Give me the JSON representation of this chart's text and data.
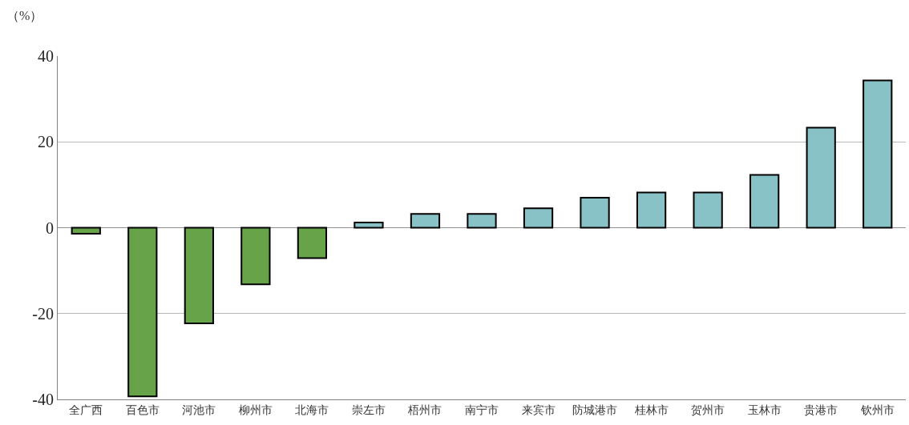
{
  "chart_data": {
    "type": "bar",
    "ylabel": "（%）",
    "categories": [
      "全广西",
      "百色市",
      "河池市",
      "柳州市",
      "北海市",
      "崇左市",
      "梧州市",
      "南宁市",
      "来宾市",
      "防城港市",
      "桂林市",
      "贺州市",
      "玉林市",
      "贵港市",
      "钦州市"
    ],
    "values": [
      -1.4,
      -39.3,
      -22.3,
      -13.2,
      -7.1,
      1.2,
      3.2,
      3.2,
      4.5,
      7.0,
      8.2,
      8.2,
      12.3,
      23.3,
      34.3
    ],
    "colors": [
      "#66a349",
      "#66a349",
      "#66a349",
      "#66a349",
      "#66a349",
      "#88c2c6",
      "#88c2c6",
      "#88c2c6",
      "#88c2c6",
      "#88c2c6",
      "#88c2c6",
      "#88c2c6",
      "#88c2c6",
      "#88c2c6",
      "#88c2c6"
    ],
    "ylim": [
      -40,
      40
    ],
    "yticks": [
      -40,
      -20,
      0,
      20,
      40
    ],
    "grid": "y"
  }
}
